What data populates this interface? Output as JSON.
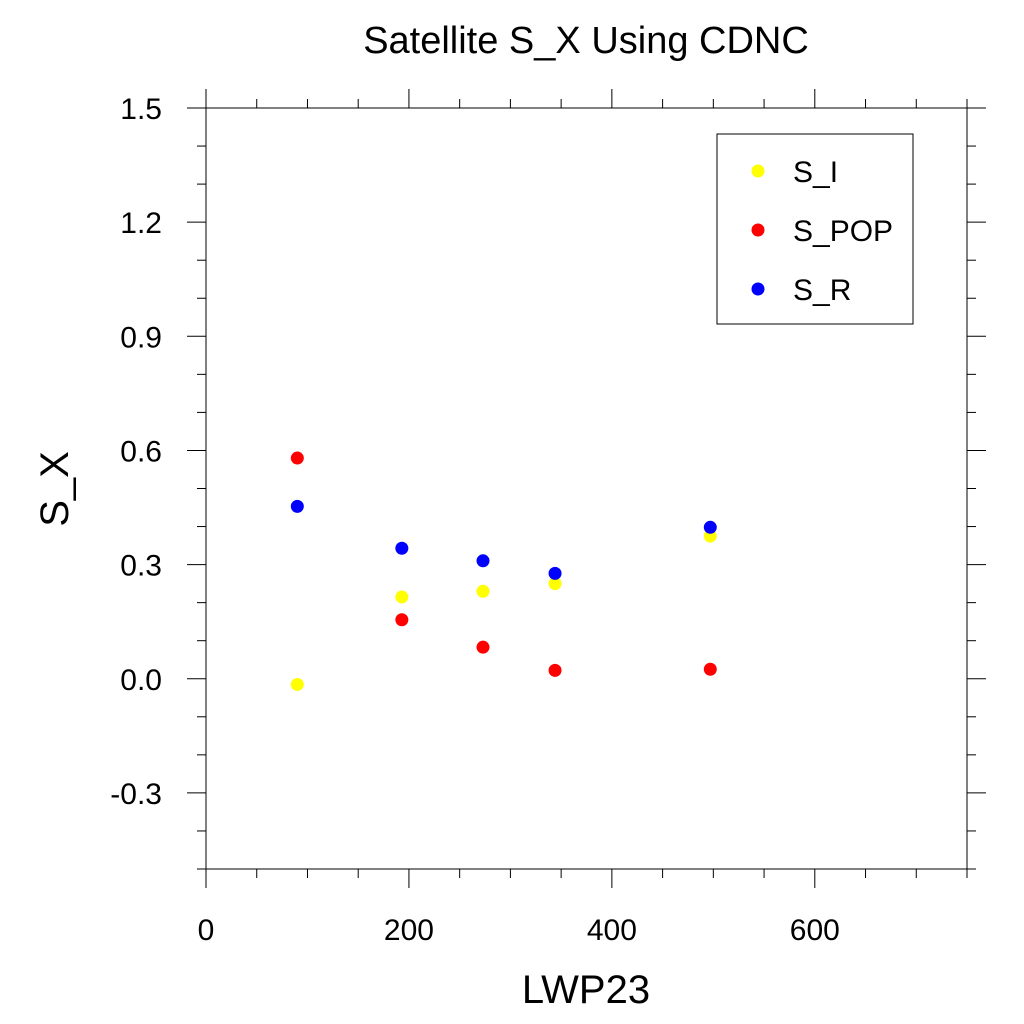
{
  "chart_data": {
    "type": "scatter",
    "title": "Satellite S_X Using CDNC",
    "xlabel": "LWP23",
    "ylabel": "S_X",
    "xlim": [
      0,
      750
    ],
    "ylim": [
      -0.5,
      1.5
    ],
    "x_ticks": [
      0,
      200,
      400,
      600
    ],
    "x_tick_labels": [
      "0",
      "200",
      "400",
      "600"
    ],
    "y_ticks": [
      -0.3,
      0.0,
      0.3,
      0.6,
      0.9,
      1.2,
      1.5
    ],
    "y_tick_labels": [
      "-0.3",
      "0.0",
      "0.3",
      "0.6",
      "0.9",
      "1.2",
      "1.5"
    ],
    "grid": false,
    "legend_position": "top-right",
    "series": [
      {
        "name": "S_I",
        "color": "#ffff00",
        "x": [
          90,
          193,
          273,
          344,
          497
        ],
        "y": [
          -0.015,
          0.215,
          0.23,
          0.25,
          0.375
        ]
      },
      {
        "name": "S_POP",
        "color": "#ff0000",
        "x": [
          90,
          193,
          273,
          344,
          497
        ],
        "y": [
          0.58,
          0.155,
          0.083,
          0.022,
          0.025
        ]
      },
      {
        "name": "S_R",
        "color": "#0000ff",
        "x": [
          90,
          193,
          273,
          344,
          497
        ],
        "y": [
          0.453,
          0.343,
          0.31,
          0.277,
          0.398
        ]
      }
    ]
  }
}
